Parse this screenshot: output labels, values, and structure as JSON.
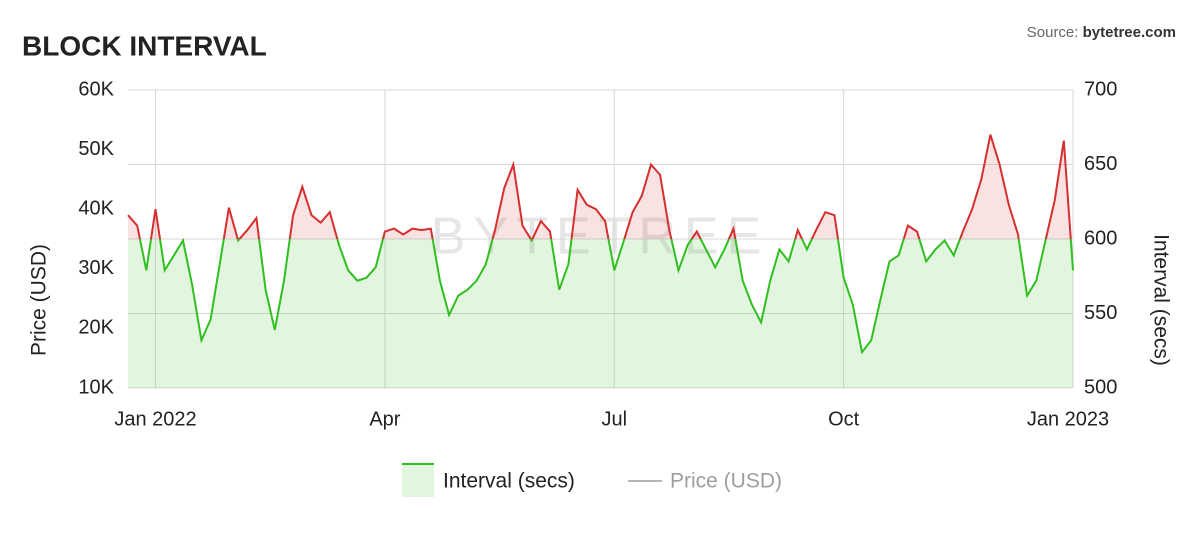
{
  "chart_data": {
    "type": "line",
    "title": "BLOCK INTERVAL",
    "source_prefix": "Source: ",
    "source": "bytetree.com",
    "watermark": "BYTETREE",
    "y_label": "Price (USD)",
    "y2_label": "Interval (secs)",
    "ylim": [
      10000,
      60000
    ],
    "yticks": [
      {
        "value": 10000,
        "label": "10K"
      },
      {
        "value": 20000,
        "label": "20K"
      },
      {
        "value": 30000,
        "label": "30K"
      },
      {
        "value": 40000,
        "label": "40K"
      },
      {
        "value": 50000,
        "label": "50K"
      },
      {
        "value": 60000,
        "label": "60K"
      }
    ],
    "y2lim": [
      500,
      700
    ],
    "y2ticks": [
      500,
      550,
      600,
      650,
      700
    ],
    "threshold": 600,
    "above_color": "#d62f2f",
    "below_color": "#2fbf1f",
    "grid": true,
    "categories": [
      null,
      null,
      null,
      "Jan 2022",
      null,
      null,
      null,
      null,
      null,
      null,
      null,
      null,
      null,
      null,
      null,
      null,
      null,
      null,
      null,
      null,
      null,
      null,
      null,
      null,
      null,
      null,
      null,
      null,
      "Apr",
      null,
      null,
      null,
      null,
      null,
      null,
      null,
      null,
      null,
      null,
      null,
      null,
      null,
      null,
      null,
      null,
      null,
      null,
      null,
      null,
      null,
      null,
      null,
      null,
      "Jul",
      null,
      null,
      null,
      null,
      null,
      null,
      null,
      null,
      null,
      null,
      null,
      null,
      null,
      null,
      null,
      null,
      null,
      null,
      null,
      null,
      null,
      null,
      null,
      null,
      "Oct",
      null,
      null,
      null,
      null,
      null,
      null,
      null,
      null,
      null,
      null,
      null,
      null,
      null,
      null,
      null,
      null,
      null,
      null,
      null,
      null,
      null,
      null,
      null,
      null,
      "Jan 2023"
    ],
    "series": [
      {
        "name": "Interval (secs)",
        "color": "#2fbf1f",
        "axis": "y2",
        "values": [
          616,
          609,
          579,
          620,
          579,
          589,
          599,
          569,
          532,
          546,
          583,
          621,
          599,
          606,
          614,
          566,
          539,
          572,
          616,
          635,
          616,
          611,
          618,
          596,
          579,
          572,
          574,
          581,
          605,
          607,
          603,
          607,
          606,
          607,
          572,
          549,
          562,
          566,
          572,
          583,
          606,
          634,
          650,
          609,
          599,
          612,
          605,
          566,
          583,
          633,
          623,
          620,
          612,
          579,
          598,
          618,
          629,
          650,
          643,
          606,
          579,
          596,
          605,
          593,
          581,
          593,
          607,
          572,
          556,
          544,
          572,
          593,
          585,
          606,
          593,
          606,
          618,
          616,
          574,
          556,
          524,
          532,
          559,
          585,
          589,
          609,
          605,
          585,
          593,
          599,
          589,
          605,
          620,
          640,
          670,
          650,
          623,
          603,
          562,
          572,
          599,
          626,
          666,
          579
        ]
      },
      {
        "name": "Price (USD)",
        "color": "#9e9e9e",
        "hidden": true
      }
    ]
  }
}
